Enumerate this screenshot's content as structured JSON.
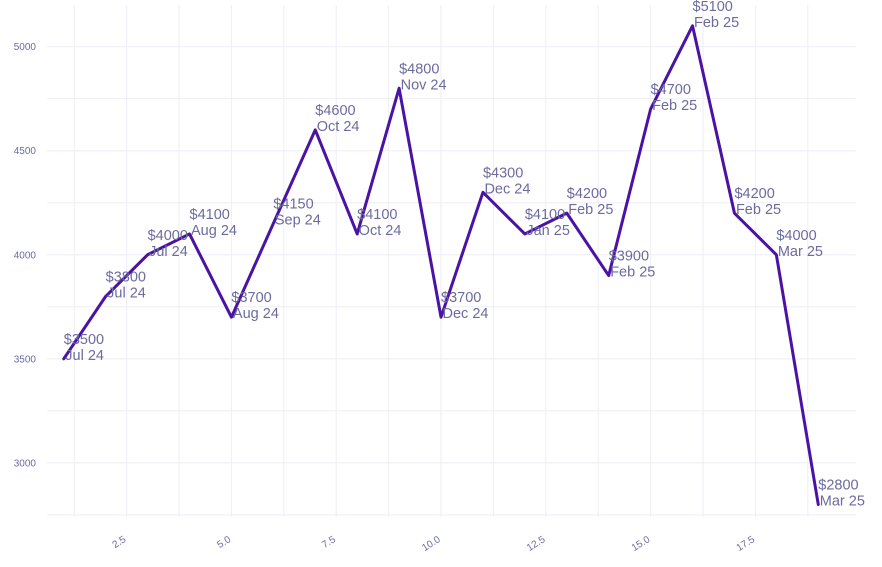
{
  "chart_data": {
    "type": "line",
    "title": "",
    "xlabel": "",
    "ylabel": "",
    "xlim": [
      0.6,
      19.9
    ],
    "ylim": [
      2740,
      5200
    ],
    "x_ticks": [
      2.5,
      5.0,
      7.5,
      10.0,
      12.5,
      15.0,
      17.5
    ],
    "x_tick_labels": [
      "2.5",
      "5.0",
      "7.5",
      "10.0",
      "12.5",
      "15.0",
      "17.5"
    ],
    "y_ticks": [
      3000,
      3500,
      4000,
      4500,
      5000
    ],
    "y_tick_labels": [
      "3000",
      "3500",
      "4000",
      "4500",
      "5000"
    ],
    "grid": true,
    "legend": "none",
    "series": [
      {
        "name": "price",
        "color": "#4a13a4",
        "points": [
          {
            "x": 1,
            "y": 3500,
            "price_label": "$3500",
            "month_label": "Jul 24"
          },
          {
            "x": 2,
            "y": 3800,
            "price_label": "$3800",
            "month_label": "Jul 24"
          },
          {
            "x": 3,
            "y": 4000,
            "price_label": "$4000",
            "month_label": "Jul 24"
          },
          {
            "x": 4,
            "y": 4100,
            "price_label": "$4100",
            "month_label": "Aug 24"
          },
          {
            "x": 5,
            "y": 3700,
            "price_label": "$3700",
            "month_label": "Aug 24"
          },
          {
            "x": 6,
            "y": 4150,
            "price_label": "$4150",
            "month_label": "Sep 24"
          },
          {
            "x": 7,
            "y": 4600,
            "price_label": "$4600",
            "month_label": "Oct 24"
          },
          {
            "x": 8,
            "y": 4100,
            "price_label": "$4100",
            "month_label": "Oct 24"
          },
          {
            "x": 9,
            "y": 4800,
            "price_label": "$4800",
            "month_label": "Nov 24"
          },
          {
            "x": 10,
            "y": 3700,
            "price_label": "$3700",
            "month_label": "Dec 24"
          },
          {
            "x": 11,
            "y": 4300,
            "price_label": "$4300",
            "month_label": "Dec 24"
          },
          {
            "x": 12,
            "y": 4100,
            "price_label": "$4100",
            "month_label": "Jan 25"
          },
          {
            "x": 13,
            "y": 4200,
            "price_label": "$4200",
            "month_label": "Feb 25"
          },
          {
            "x": 14,
            "y": 3900,
            "price_label": "$3900",
            "month_label": "Feb 25"
          },
          {
            "x": 15,
            "y": 4700,
            "price_label": "$4700",
            "month_label": "Feb 25"
          },
          {
            "x": 16,
            "y": 5100,
            "price_label": "$5100",
            "month_label": "Feb 25"
          },
          {
            "x": 17,
            "y": 4200,
            "price_label": "$4200",
            "month_label": "Feb 25"
          },
          {
            "x": 18,
            "y": 4000,
            "price_label": "$4000",
            "month_label": "Mar 25"
          },
          {
            "x": 19,
            "y": 2800,
            "price_label": "$2800",
            "month_label": "Mar 25"
          }
        ]
      }
    ]
  }
}
